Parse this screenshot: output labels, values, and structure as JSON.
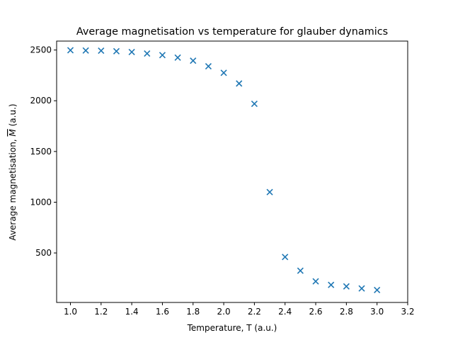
{
  "chart_data": {
    "type": "scatter",
    "title": "Average magnetisation vs temperature for glauber dynamics",
    "xlabel": "Temperature, T (a.u.)",
    "ylabel_prefix": "Average magnetisation, ",
    "ylabel_symbol": "M",
    "ylabel_suffix": " (a.u.)",
    "xlim": [
      0.91,
      3.2
    ],
    "ylim": [
      12,
      2588
    ],
    "xticks": [
      1.0,
      1.2,
      1.4,
      1.6,
      1.8,
      2.0,
      2.2,
      2.4,
      2.6,
      2.8,
      3.0,
      3.2
    ],
    "xtick_labels": [
      "1.0",
      "1.2",
      "1.4",
      "1.6",
      "1.8",
      "2.0",
      "2.2",
      "2.4",
      "2.6",
      "2.8",
      "3.0",
      "3.2"
    ],
    "yticks": [
      500,
      1000,
      1500,
      2000,
      2500
    ],
    "ytick_labels": [
      "500",
      "1000",
      "1500",
      "2000",
      "2500"
    ],
    "marker": "x",
    "grid": false,
    "color": "#1f77b4",
    "series": [
      {
        "x": [
          1.0,
          1.1,
          1.2,
          1.3,
          1.4,
          1.5,
          1.6,
          1.7,
          1.8,
          1.9,
          2.0,
          2.1,
          2.2,
          2.3,
          2.4,
          2.5,
          2.6,
          2.7,
          2.8,
          2.9,
          3.0
        ],
        "y": [
          2498,
          2495,
          2493,
          2488,
          2480,
          2465,
          2450,
          2425,
          2395,
          2340,
          2275,
          2170,
          1970,
          1100,
          460,
          325,
          220,
          185,
          170,
          150,
          135
        ]
      }
    ]
  }
}
